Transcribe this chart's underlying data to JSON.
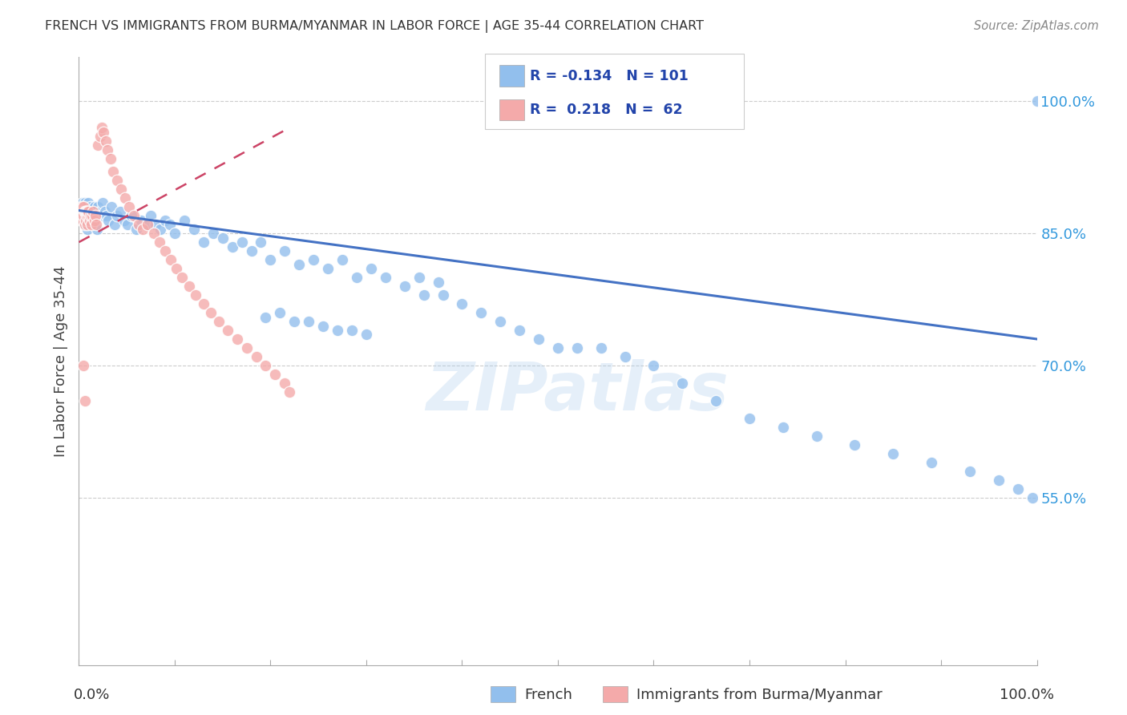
{
  "title": "FRENCH VS IMMIGRANTS FROM BURMA/MYANMAR IN LABOR FORCE | AGE 35-44 CORRELATION CHART",
  "source_text": "Source: ZipAtlas.com",
  "ylabel": "In Labor Force | Age 35-44",
  "xlim": [
    0.0,
    1.0
  ],
  "ylim": [
    0.36,
    1.05
  ],
  "right_yticks": [
    1.0,
    0.85,
    0.7,
    0.55
  ],
  "right_yticklabels": [
    "100.0%",
    "85.0%",
    "70.0%",
    "55.0%"
  ],
  "hgrid_values": [
    1.0,
    0.85,
    0.7,
    0.55
  ],
  "blue_R": -0.134,
  "blue_N": 101,
  "pink_R": 0.218,
  "pink_N": 62,
  "blue_color": "#92BFED",
  "pink_color": "#F4AAAA",
  "blue_line_color": "#4472C4",
  "pink_line_color": "#CC4466",
  "blue_line_x": [
    0.0,
    1.0
  ],
  "blue_line_y": [
    0.876,
    0.73
  ],
  "pink_line_x": [
    0.0,
    0.22
  ],
  "pink_line_y": [
    0.84,
    0.97
  ],
  "watermark_text": "ZIPatlas",
  "legend_label_blue": "French",
  "legend_label_pink": "Immigrants from Burma/Myanmar",
  "xtick_positions": [
    0.0,
    0.1,
    0.2,
    0.3,
    0.4,
    0.5,
    0.6,
    0.7,
    0.8,
    0.9,
    1.0
  ],
  "blue_x": [
    0.003,
    0.004,
    0.004,
    0.005,
    0.005,
    0.006,
    0.006,
    0.007,
    0.007,
    0.008,
    0.008,
    0.009,
    0.009,
    0.01,
    0.01,
    0.011,
    0.012,
    0.013,
    0.014,
    0.015,
    0.016,
    0.017,
    0.018,
    0.019,
    0.02,
    0.022,
    0.024,
    0.025,
    0.027,
    0.029,
    0.031,
    0.034,
    0.037,
    0.04,
    0.043,
    0.047,
    0.051,
    0.055,
    0.06,
    0.065,
    0.07,
    0.075,
    0.08,
    0.085,
    0.09,
    0.095,
    0.1,
    0.11,
    0.12,
    0.13,
    0.14,
    0.15,
    0.16,
    0.17,
    0.18,
    0.19,
    0.2,
    0.215,
    0.23,
    0.245,
    0.26,
    0.275,
    0.29,
    0.305,
    0.32,
    0.34,
    0.36,
    0.38,
    0.4,
    0.42,
    0.44,
    0.46,
    0.48,
    0.5,
    0.52,
    0.545,
    0.57,
    0.6,
    0.63,
    0.665,
    0.7,
    0.735,
    0.77,
    0.81,
    0.85,
    0.89,
    0.93,
    0.96,
    0.98,
    0.995,
    1.0,
    0.355,
    0.375,
    0.195,
    0.21,
    0.225,
    0.24,
    0.255,
    0.27,
    0.285,
    0.3
  ],
  "blue_y": [
    0.88,
    0.875,
    0.885,
    0.87,
    0.875,
    0.86,
    0.885,
    0.87,
    0.88,
    0.865,
    0.88,
    0.875,
    0.855,
    0.885,
    0.87,
    0.875,
    0.88,
    0.865,
    0.87,
    0.875,
    0.88,
    0.865,
    0.87,
    0.855,
    0.88,
    0.875,
    0.87,
    0.885,
    0.875,
    0.87,
    0.865,
    0.88,
    0.86,
    0.87,
    0.875,
    0.865,
    0.86,
    0.87,
    0.855,
    0.865,
    0.86,
    0.87,
    0.86,
    0.855,
    0.865,
    0.86,
    0.85,
    0.865,
    0.855,
    0.84,
    0.85,
    0.845,
    0.835,
    0.84,
    0.83,
    0.84,
    0.82,
    0.83,
    0.815,
    0.82,
    0.81,
    0.82,
    0.8,
    0.81,
    0.8,
    0.79,
    0.78,
    0.78,
    0.77,
    0.76,
    0.75,
    0.74,
    0.73,
    0.72,
    0.72,
    0.72,
    0.71,
    0.7,
    0.68,
    0.66,
    0.64,
    0.63,
    0.62,
    0.61,
    0.6,
    0.59,
    0.58,
    0.57,
    0.56,
    0.55,
    1.0,
    0.8,
    0.795,
    0.755,
    0.76,
    0.75,
    0.75,
    0.745,
    0.74,
    0.74,
    0.735
  ],
  "pink_x": [
    0.002,
    0.003,
    0.003,
    0.004,
    0.004,
    0.005,
    0.005,
    0.006,
    0.006,
    0.007,
    0.007,
    0.008,
    0.008,
    0.009,
    0.009,
    0.01,
    0.01,
    0.011,
    0.012,
    0.013,
    0.014,
    0.015,
    0.016,
    0.017,
    0.018,
    0.02,
    0.022,
    0.024,
    0.026,
    0.028,
    0.03,
    0.033,
    0.036,
    0.04,
    0.044,
    0.048,
    0.052,
    0.057,
    0.062,
    0.067,
    0.072,
    0.078,
    0.084,
    0.09,
    0.096,
    0.102,
    0.108,
    0.115,
    0.122,
    0.13,
    0.138,
    0.146,
    0.155,
    0.165,
    0.175,
    0.185,
    0.195,
    0.205,
    0.215,
    0.22,
    0.005,
    0.006
  ],
  "pink_y": [
    0.875,
    0.88,
    0.87,
    0.875,
    0.865,
    0.88,
    0.87,
    0.875,
    0.86,
    0.875,
    0.865,
    0.87,
    0.875,
    0.86,
    0.875,
    0.87,
    0.875,
    0.865,
    0.87,
    0.86,
    0.87,
    0.875,
    0.865,
    0.87,
    0.86,
    0.95,
    0.96,
    0.97,
    0.965,
    0.955,
    0.945,
    0.935,
    0.92,
    0.91,
    0.9,
    0.89,
    0.88,
    0.87,
    0.86,
    0.855,
    0.86,
    0.85,
    0.84,
    0.83,
    0.82,
    0.81,
    0.8,
    0.79,
    0.78,
    0.77,
    0.76,
    0.75,
    0.74,
    0.73,
    0.72,
    0.71,
    0.7,
    0.69,
    0.68,
    0.67,
    0.7,
    0.66
  ]
}
